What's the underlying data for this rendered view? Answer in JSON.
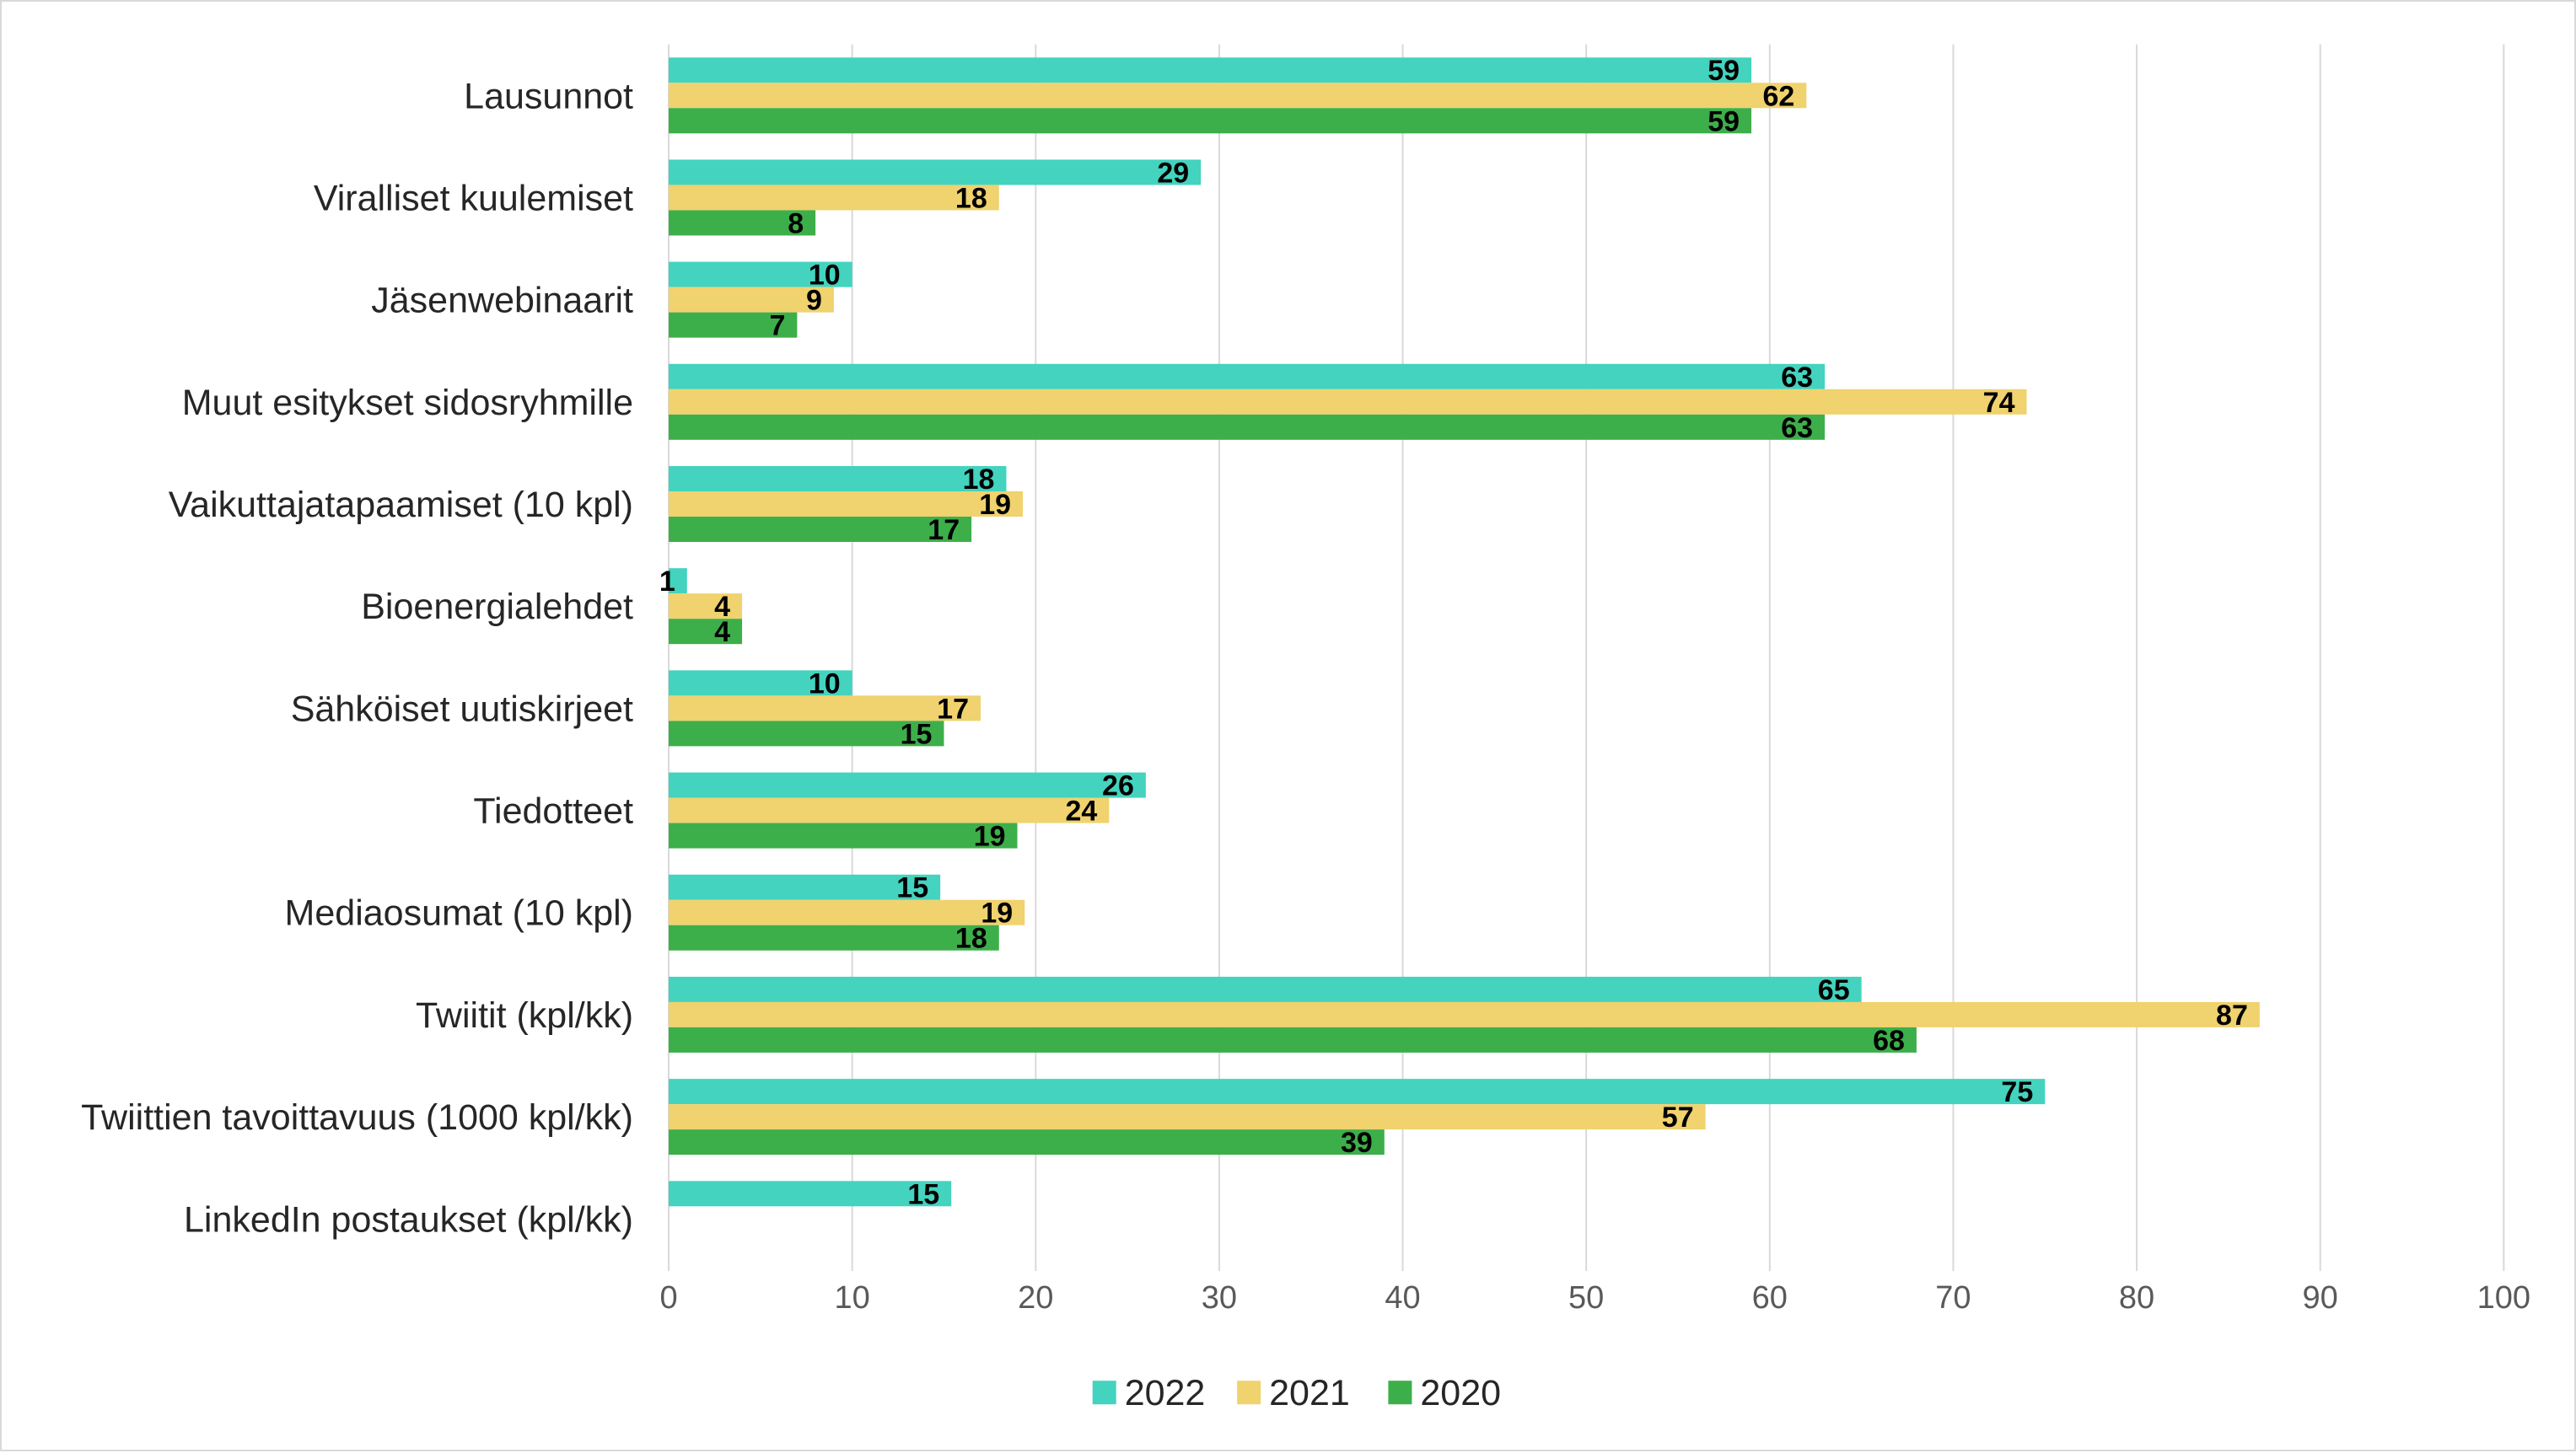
{
  "chart_data": {
    "type": "bar",
    "orientation": "horizontal",
    "categories": [
      "Lausunnot",
      "Viralliset kuulemiset",
      "Jäsenwebinaarit",
      "Muut esitykset sidosryhmille",
      "Vaikuttajatapaamiset (10 kpl)",
      "Bioenergialehdet",
      "Sähköiset uutiskirjeet",
      "Tiedotteet",
      "Mediaosumat (10 kpl)",
      "Twiitit (kpl/kk)",
      "Twiittien tavoittavuus (1000 kpl/kk)",
      "LinkedIn postaukset (kpl/kk)"
    ],
    "series": [
      {
        "name": "2022",
        "color": "#43d3bf",
        "values": [
          59,
          29,
          10,
          63,
          18.4,
          1,
          10,
          26,
          14.8,
          65,
          75,
          15.4
        ],
        "labels": [
          "59",
          "29",
          "10",
          "63",
          "18",
          "1",
          "10",
          "26",
          "15",
          "65",
          "75",
          "15"
        ]
      },
      {
        "name": "2021",
        "color": "#f0d26e",
        "values": [
          62,
          18,
          9,
          74,
          19.3,
          4,
          17,
          24,
          19.4,
          86.7,
          56.5,
          null
        ],
        "labels": [
          "62",
          "18",
          "9",
          "74",
          "19",
          "4",
          "17",
          "24",
          "19",
          "87",
          "57",
          ""
        ]
      },
      {
        "name": "2020",
        "color": "#3daf4a",
        "values": [
          59,
          8,
          7,
          63,
          16.5,
          4,
          15,
          19,
          18,
          68,
          39,
          null
        ],
        "labels": [
          "59",
          "8",
          "7",
          "63",
          "17",
          "4",
          "15",
          "19",
          "18",
          "68",
          "39",
          ""
        ]
      }
    ],
    "xlim": [
      0,
      100
    ],
    "xticks": [
      "0",
      "10",
      "20",
      "30",
      "40",
      "50",
      "60",
      "70",
      "80",
      "90",
      "100"
    ],
    "grid": "vertical",
    "legend_position": "bottom-center",
    "title": "",
    "xlabel": "",
    "ylabel": ""
  }
}
